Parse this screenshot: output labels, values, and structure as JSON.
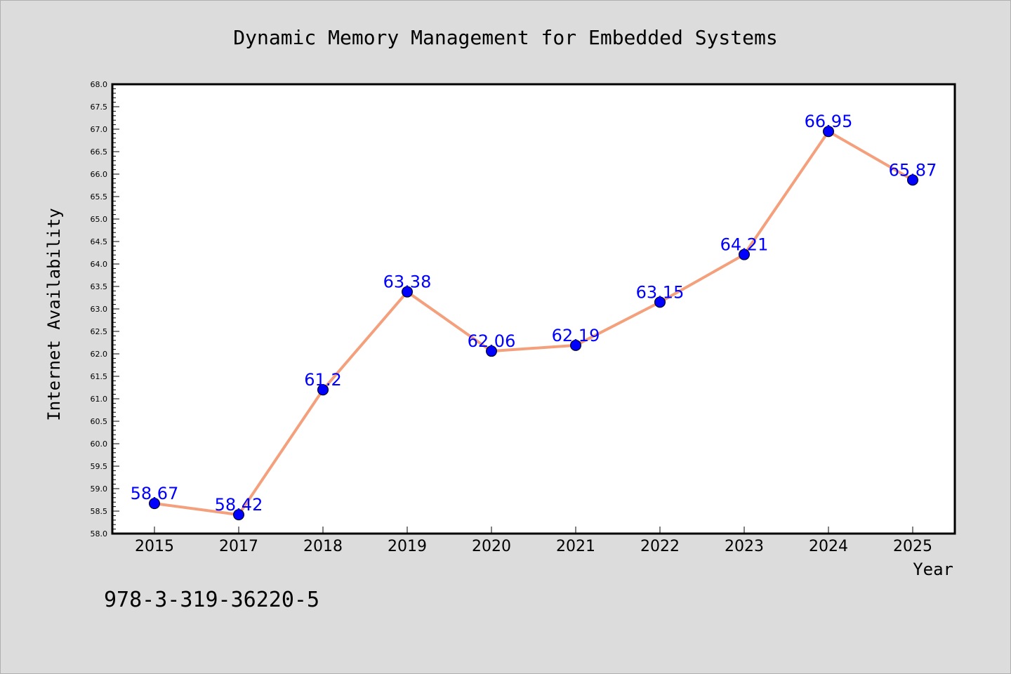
{
  "chart_data": {
    "type": "line",
    "title": "Dynamic Memory Management for Embedded Systems",
    "xlabel": "Year",
    "ylabel": "Internet Availability",
    "categories": [
      "2015",
      "2017",
      "2018",
      "2019",
      "2020",
      "2021",
      "2022",
      "2023",
      "2024",
      "2025"
    ],
    "values": [
      58.67,
      58.42,
      61.2,
      63.38,
      62.06,
      62.19,
      63.15,
      64.21,
      66.95,
      65.87
    ],
    "data_labels": [
      "58.67",
      "58.42",
      "61.2",
      "63.38",
      "62.06",
      "62.19",
      "63.15",
      "64.21",
      "66.95",
      "65.87"
    ],
    "ylim": [
      58.0,
      68.0
    ],
    "y_major_step": 0.5,
    "grid": false,
    "legend": "none",
    "line_color": "#f4a07c",
    "marker_color": "#0000ff",
    "label_color": "#0000ff",
    "background": "#dcdcdc",
    "plot_background": "#ffffff"
  },
  "footer": {
    "isbn": "978-3-319-36220-5"
  }
}
